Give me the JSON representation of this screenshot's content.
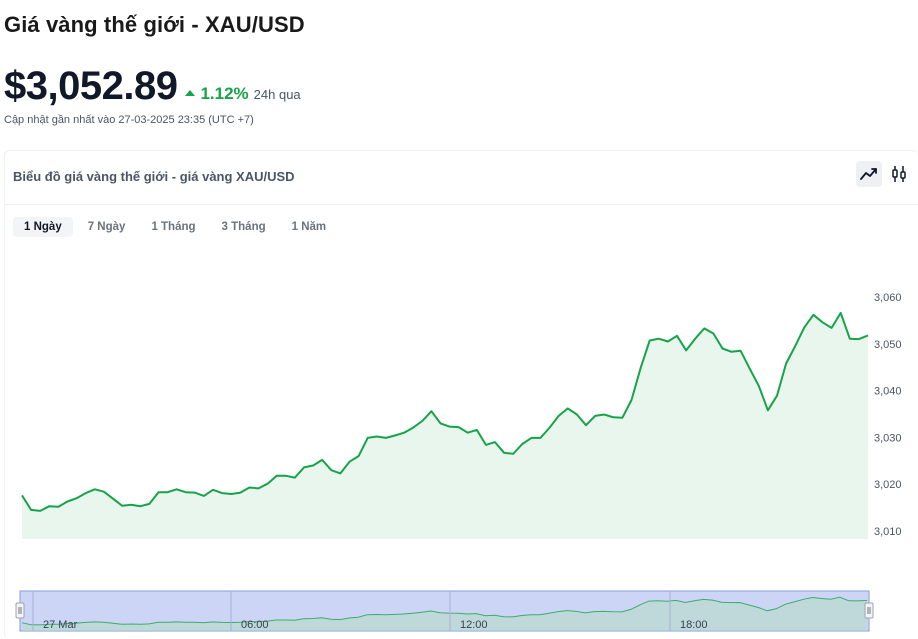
{
  "header": {
    "title": "Giá vàng thế giới - XAU/USD",
    "price": "$3,052.89",
    "change_pct": "1.12%",
    "change_period": "24h qua",
    "updated": "Cập nhật gần nhất vào 27-03-2025 23:35 (UTC +7)"
  },
  "card": {
    "title": "Biểu đồ giá vàng thế giới - giá vàng XAU/USD",
    "chart_types": [
      {
        "name": "line",
        "icon": "line-chart-icon",
        "active": true
      },
      {
        "name": "candlestick",
        "icon": "candlestick-icon",
        "active": false
      }
    ],
    "tabs": [
      {
        "label": "1 Ngày",
        "active": true
      },
      {
        "label": "7 Ngày",
        "active": false
      },
      {
        "label": "1 Tháng",
        "active": false
      },
      {
        "label": "3 Tháng",
        "active": false
      },
      {
        "label": "1 Năm",
        "active": false
      }
    ]
  },
  "colors": {
    "line": "#16a34a",
    "area": "#e9f6ee",
    "navigator_bg": "#cdd5f6",
    "navigator_border": "#8a9ad8"
  },
  "chart_data": {
    "type": "area",
    "title": "",
    "xlabel": "",
    "ylabel": "",
    "ylim": [
      3009,
      3062
    ],
    "yticks": [
      3010,
      3020,
      3030,
      3040,
      3050,
      3060
    ],
    "ytick_labels": [
      "3,010",
      "3,020",
      "3,030",
      "3,040",
      "3,050",
      "3,060"
    ],
    "navigator_labels": [
      "27 Mar",
      "06:00",
      "12:00",
      "18:00"
    ],
    "grid": false,
    "series": [
      {
        "values": [
          3017.6,
          3014.5,
          3014.3,
          3015.3,
          3015.2,
          3016.3,
          3017.0,
          3018.1,
          3018.9,
          3018.4,
          3016.9,
          3015.4,
          3015.6,
          3015.3,
          3015.8,
          3018.3,
          3018.3,
          3018.9,
          3018.3,
          3018.2,
          3017.5,
          3018.8,
          3018.1,
          3017.9,
          3018.2,
          3019.3,
          3019.1,
          3020.1,
          3021.8,
          3021.8,
          3021.4,
          3023.6,
          3024.0,
          3025.2,
          3023.0,
          3022.3,
          3024.8,
          3026.0,
          3029.9,
          3030.2,
          3029.9,
          3030.4,
          3031.0,
          3032.1,
          3033.5,
          3035.6,
          3033.0,
          3032.3,
          3032.2,
          3031.0,
          3031.6,
          3028.4,
          3029.0,
          3026.7,
          3026.5,
          3028.6,
          3029.9,
          3029.9,
          3032.1,
          3034.6,
          3036.2,
          3034.9,
          3032.6,
          3034.6,
          3034.9,
          3034.3,
          3034.2,
          3038.0,
          3044.8,
          3050.7,
          3051.1,
          3050.5,
          3051.7,
          3048.6,
          3051.1,
          3053.3,
          3052.2,
          3049.0,
          3048.3,
          3048.5,
          3044.7,
          3041.0,
          3035.8,
          3038.9,
          3045.8,
          3049.5,
          3053.5,
          3056.2,
          3054.6,
          3053.4,
          3056.6,
          3051.1,
          3051.0,
          3051.8
        ]
      }
    ]
  }
}
